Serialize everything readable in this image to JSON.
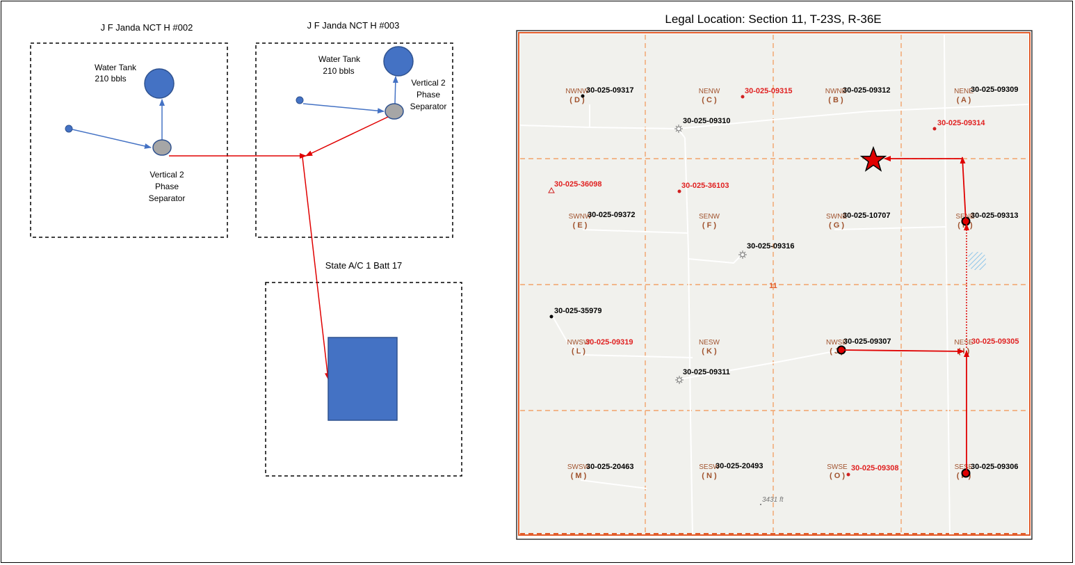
{
  "diagram": {
    "box1_title": "J F Janda NCT H #002",
    "box2_title": "J F Janda NCT H #003",
    "box3_title": "State A/C 1 Batt 17",
    "tank1_label_line1": "Water Tank",
    "tank1_label_line2": "210 bbls",
    "tank2_label_line1": "Water Tank",
    "tank2_label_line2": "210 bbls",
    "sep1_label": [
      "Vertical 2",
      "Phase",
      "Separator"
    ],
    "sep2_label": [
      "Vertical 2",
      "Phase",
      "Separator"
    ],
    "colors": {
      "equipment": "#4472c4",
      "separator": "#a6a6a6",
      "flow": "#e00000",
      "water_flow": "#4472c4"
    }
  },
  "map": {
    "title": "Legal Location: Section 11, T-23S, R-36E",
    "section_number": "11",
    "elevation_label": "3431 ft",
    "quarter_labels": [
      {
        "code": "NWNW",
        "letter": "( D )"
      },
      {
        "code": "NENW",
        "letter": "( C )"
      },
      {
        "code": "NWNE",
        "letter": "( B )"
      },
      {
        "code": "NENE",
        "letter": "( A )"
      },
      {
        "code": "SWNW",
        "letter": "( E )"
      },
      {
        "code": "SENW",
        "letter": "( F )"
      },
      {
        "code": "SWNE",
        "letter": "( G )"
      },
      {
        "code": "SENE",
        "letter": "( H )"
      },
      {
        "code": "NWSW",
        "letter": "( L )"
      },
      {
        "code": "NESW",
        "letter": "( K )"
      },
      {
        "code": "NWSE",
        "letter": "( J )"
      },
      {
        "code": "NESE",
        "letter": "( I )"
      },
      {
        "code": "SWSW",
        "letter": "( M )"
      },
      {
        "code": "SESW",
        "letter": "( N )"
      },
      {
        "code": "SWSE",
        "letter": "( O )"
      },
      {
        "code": "SESE",
        "letter": "( P )"
      }
    ],
    "wells": [
      {
        "api": "30-025-09317",
        "color": "#000000"
      },
      {
        "api": "30-025-09315",
        "color": "#e02020"
      },
      {
        "api": "30-025-09312",
        "color": "#000000"
      },
      {
        "api": "30-025-09309",
        "color": "#000000"
      },
      {
        "api": "30-025-09310",
        "color": "#000000"
      },
      {
        "api": "30-025-09314",
        "color": "#e02020"
      },
      {
        "api": "30-025-36098",
        "color": "#e02020"
      },
      {
        "api": "30-025-36103",
        "color": "#e02020"
      },
      {
        "api": "30-025-09372",
        "color": "#000000"
      },
      {
        "api": "30-025-10707",
        "color": "#000000"
      },
      {
        "api": "30-025-09313",
        "color": "#000000"
      },
      {
        "api": "30-025-09316",
        "color": "#000000"
      },
      {
        "api": "30-025-35979",
        "color": "#000000"
      },
      {
        "api": "30-025-09319",
        "color": "#e02020"
      },
      {
        "api": "30-025-09307",
        "color": "#000000"
      },
      {
        "api": "30-025-09305",
        "color": "#e02020"
      },
      {
        "api": "30-025-09311",
        "color": "#000000"
      },
      {
        "api": "30-025-20463",
        "color": "#000000"
      },
      {
        "api": "30-025-20493",
        "color": "#000000"
      },
      {
        "api": "30-025-09308",
        "color": "#e02020"
      },
      {
        "api": "30-025-09306",
        "color": "#000000"
      }
    ]
  }
}
